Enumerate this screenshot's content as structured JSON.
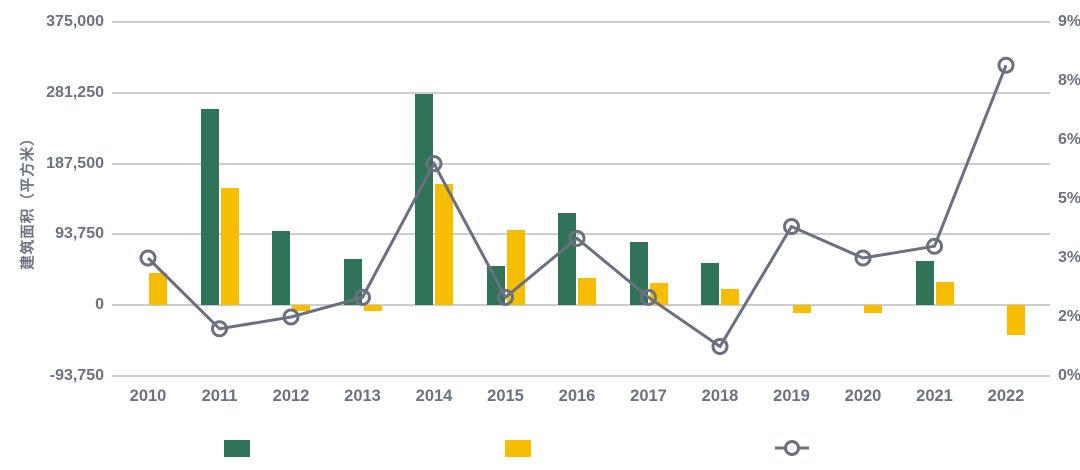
{
  "chart_data": {
    "type": "bar",
    "subtype": "grouped-bar-with-line-combo",
    "title": "",
    "categories": [
      "2010",
      "2011",
      "2012",
      "2013",
      "2014",
      "2015",
      "2016",
      "2017",
      "2018",
      "2019",
      "2020",
      "2021",
      "2022"
    ],
    "series": [
      {
        "name": "green-bar-series",
        "type": "bar",
        "axis": "left",
        "color": "#2f7459",
        "values": [
          null,
          260000,
          98000,
          61000,
          280000,
          52000,
          122000,
          84000,
          56000,
          null,
          null,
          58000,
          null
        ]
      },
      {
        "name": "yellow-bar-series",
        "type": "bar",
        "axis": "left",
        "color": "#f7bd00",
        "values": [
          42000,
          155000,
          -8000,
          -8000,
          161000,
          100000,
          36000,
          30000,
          21000,
          -11000,
          -10000,
          31000,
          -40000
        ]
      },
      {
        "name": "gray-line-series",
        "type": "line",
        "axis": "right",
        "color": "#6a7080",
        "marker": "open-circle",
        "values": [
          3.0,
          1.2,
          1.5,
          2.0,
          5.4,
          2.0,
          3.5,
          2.0,
          0.75,
          3.8,
          3.0,
          3.3,
          7.9
        ]
      }
    ],
    "left_axis": {
      "title": "建筑面积（平方米）",
      "range": [
        -93750,
        375000
      ],
      "ticks": [
        375000,
        281250,
        187500,
        93750,
        0,
        -93750
      ],
      "tick_labels": [
        "375,000",
        "281,250",
        "187,500",
        "93,750",
        "0",
        "-93,750"
      ]
    },
    "right_axis": {
      "title": "",
      "range": [
        0,
        9
      ],
      "ticks": [
        9,
        7.5,
        6,
        4.5,
        3,
        1.5,
        0
      ],
      "tick_labels": [
        "9%",
        "8%",
        "6%",
        "5%",
        "3%",
        "2%",
        "0%"
      ]
    },
    "grid": true,
    "legend": {
      "position": "bottom",
      "entries": [
        {
          "marker": "green-square",
          "color": "#2f7459",
          "label": ""
        },
        {
          "marker": "yellow-square",
          "color": "#f7bd00",
          "label": ""
        },
        {
          "marker": "gray-circle-line",
          "color": "#6a7080",
          "label": ""
        }
      ]
    }
  },
  "colors": {
    "background": "#ffffff",
    "gridline": "#cbcdd1",
    "text": "#6b7280",
    "green": "#2f7459",
    "yellow": "#f7bd00",
    "line": "#6a7080"
  }
}
